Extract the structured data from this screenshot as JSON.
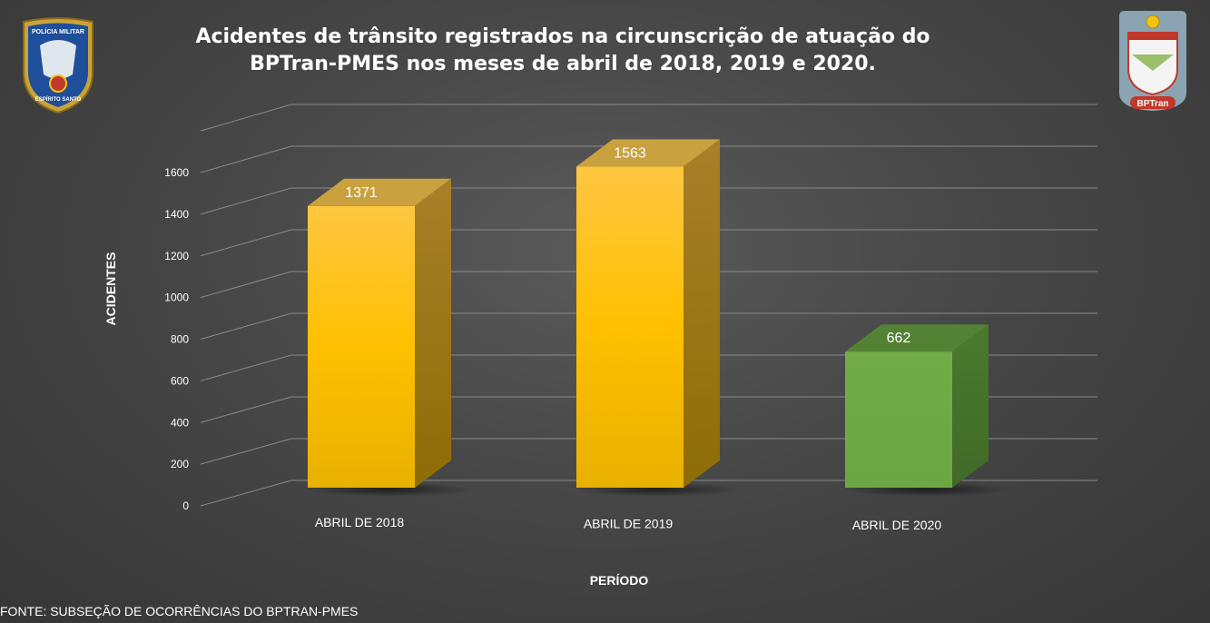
{
  "chart_data": {
    "type": "bar",
    "title": "Acidentes de trânsito registrados na circunscrição de atuação do BPTran-PMES nos meses de abril de 2018, 2019 e 2020.",
    "title_lines": [
      "Acidentes de trânsito registrados na circunscrição de atuação do",
      "BPTran-PMES nos meses de abril de 2018, 2019 e 2020."
    ],
    "categories": [
      "ABRIL DE 2018",
      "ABRIL DE 2019",
      "ABRIL DE 2020"
    ],
    "values": [
      1371,
      1563,
      662
    ],
    "data_labels": [
      "1371",
      "1563",
      "662"
    ],
    "bar_colors": [
      "#ffc000",
      "#ffc000",
      "#70ad47"
    ],
    "xlabel": "PERÍODO",
    "ylabel": "ACIDENTES",
    "ylim": [
      0,
      1600
    ],
    "yticks": [
      "0",
      "200",
      "400",
      "600",
      "800",
      "1000",
      "1200",
      "1400",
      "1600"
    ],
    "grid": true,
    "legend": "none",
    "style": "3d"
  },
  "footer": {
    "source": "FONTE: SUBSEÇÃO DE OCORRÊNCIAS DO BPTRAN-PMES"
  },
  "logos": {
    "left": {
      "icon": "policia-militar-badge",
      "text_top": "POLÍCIA MILITAR",
      "text_bottom": "ESPÍRITO SANTO"
    },
    "right": {
      "icon": "bptran-emblem",
      "text": "BPTran"
    }
  }
}
